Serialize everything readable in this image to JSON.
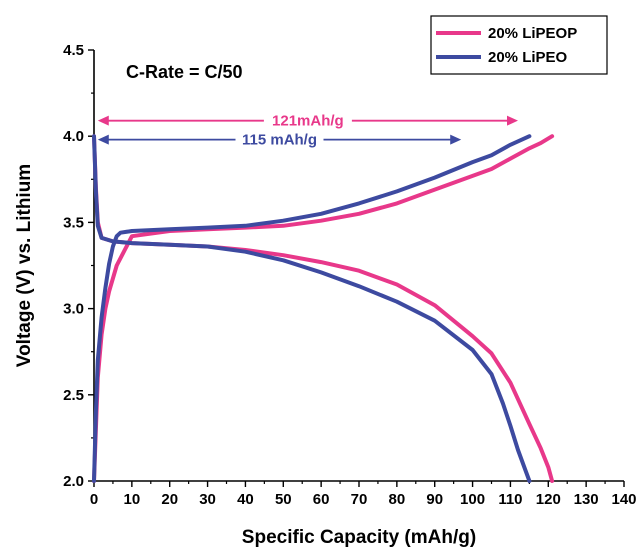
{
  "chart_data": {
    "type": "line",
    "xlabel": "Specific Capacity (mAh/g)",
    "ylabel": "Voltage (V) vs. Lithium",
    "xlim": [
      0,
      140
    ],
    "ylim": [
      2.0,
      4.5
    ],
    "xticks": [
      0,
      10,
      20,
      30,
      40,
      50,
      60,
      70,
      80,
      90,
      100,
      110,
      120,
      130,
      140
    ],
    "yticks": [
      2.0,
      2.5,
      3.0,
      3.5,
      4.0,
      4.5
    ],
    "ytick_labels": [
      "2.0",
      "2.5",
      "3.0",
      "3.5",
      "4.0",
      "4.5"
    ],
    "grid": false,
    "legend_position": "top-right",
    "series": [
      {
        "name": "20% LiPEOP",
        "color": "#e8388a",
        "segments": [
          {
            "x": [
              0,
              0.5,
              1,
              2,
              3,
              4,
              6,
              10,
              20,
              30,
              40,
              50,
              60,
              70,
              80,
              90,
              100,
              105,
              110,
              115,
              118,
              121
            ],
            "y": [
              2.0,
              2.3,
              2.6,
              2.85,
              3.0,
              3.1,
              3.25,
              3.42,
              3.45,
              3.46,
              3.47,
              3.48,
              3.51,
              3.55,
              3.61,
              3.69,
              3.77,
              3.81,
              3.87,
              3.93,
              3.96,
              4.0
            ]
          },
          {
            "x": [
              0,
              0.5,
              1,
              2,
              5,
              10,
              20,
              30,
              40,
              50,
              60,
              70,
              80,
              90,
              100,
              105,
              110,
              115,
              118,
              120,
              121
            ],
            "y": [
              4.0,
              3.7,
              3.5,
              3.41,
              3.39,
              3.38,
              3.37,
              3.36,
              3.34,
              3.31,
              3.27,
              3.22,
              3.14,
              3.02,
              2.84,
              2.74,
              2.57,
              2.33,
              2.19,
              2.08,
              2.0
            ]
          }
        ]
      },
      {
        "name": "20% LiPEO",
        "color": "#3d4aa0",
        "segments": [
          {
            "x": [
              0,
              0.5,
              1,
              2,
              3,
              4,
              5,
              6,
              7,
              10,
              20,
              30,
              40,
              50,
              60,
              70,
              80,
              90,
              100,
              105,
              110,
              115
            ],
            "y": [
              2.0,
              2.4,
              2.7,
              2.95,
              3.12,
              3.26,
              3.36,
              3.42,
              3.44,
              3.45,
              3.46,
              3.47,
              3.48,
              3.51,
              3.55,
              3.61,
              3.68,
              3.76,
              3.85,
              3.89,
              3.95,
              4.0
            ]
          },
          {
            "x": [
              0,
              0.5,
              1,
              2,
              5,
              10,
              20,
              30,
              40,
              50,
              60,
              70,
              80,
              90,
              100,
              105,
              108,
              110,
              112,
              114,
              115
            ],
            "y": [
              4.0,
              3.68,
              3.48,
              3.41,
              3.39,
              3.38,
              3.37,
              3.36,
              3.33,
              3.28,
              3.21,
              3.13,
              3.04,
              2.93,
              2.76,
              2.62,
              2.45,
              2.32,
              2.18,
              2.06,
              2.0
            ]
          }
        ]
      }
    ],
    "annotations": [
      {
        "text": "C-Rate = C/50"
      },
      {
        "text": "121mAh/g",
        "color": "#e8388a",
        "x_from": 1,
        "x_to": 112,
        "y": 4.09
      },
      {
        "text": "115 mAh/g",
        "color": "#3d4aa0",
        "x_from": 1,
        "x_to": 97,
        "y": 3.98
      }
    ]
  }
}
